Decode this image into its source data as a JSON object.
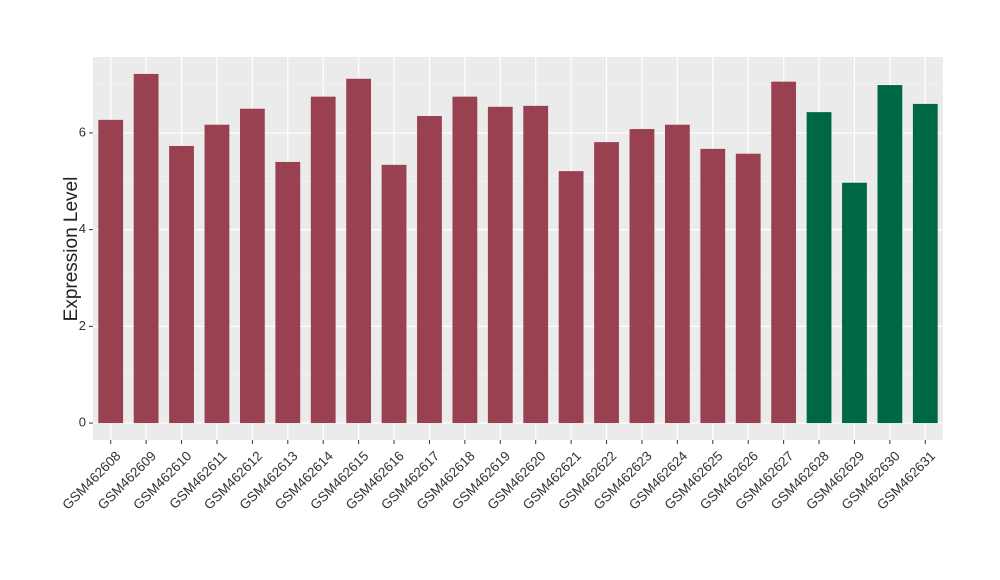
{
  "chart_data": {
    "type": "bar",
    "y_label": "Expression Level",
    "categories": [
      "GSM462608",
      "GSM462609",
      "GSM462610",
      "GSM462611",
      "GSM462612",
      "GSM462613",
      "GSM462614",
      "GSM462615",
      "GSM462616",
      "GSM462617",
      "GSM462618",
      "GSM462619",
      "GSM462620",
      "GSM462621",
      "GSM462622",
      "GSM462623",
      "GSM462624",
      "GSM462625",
      "GSM462626",
      "GSM462627",
      "GSM462628",
      "GSM462629",
      "GSM462630",
      "GSM462631"
    ],
    "values": [
      6.27,
      7.22,
      5.73,
      6.17,
      6.5,
      5.4,
      6.75,
      7.12,
      5.34,
      6.35,
      6.75,
      6.54,
      6.56,
      5.21,
      5.81,
      6.08,
      6.17,
      5.67,
      5.57,
      7.06,
      6.43,
      4.97,
      6.99,
      6.6
    ],
    "colors": [
      "#994150",
      "#994150",
      "#994150",
      "#994150",
      "#994150",
      "#994150",
      "#994150",
      "#994150",
      "#994150",
      "#994150",
      "#994150",
      "#994150",
      "#994150",
      "#994150",
      "#994150",
      "#994150",
      "#994150",
      "#994150",
      "#994150",
      "#994150",
      "#006744",
      "#006744",
      "#006744",
      "#006744"
    ],
    "ylim": [
      -0.35,
      7.57
    ],
    "yticks": [
      0,
      2,
      4,
      6
    ],
    "minor_yticks": [
      1,
      3,
      5,
      7
    ],
    "grid": true
  }
}
